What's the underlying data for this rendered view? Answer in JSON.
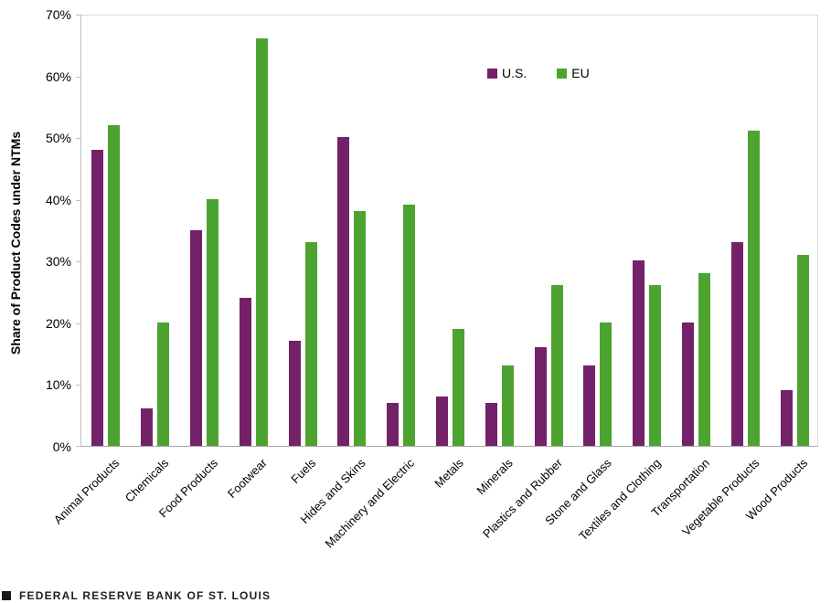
{
  "chart_data": {
    "type": "bar",
    "title": "",
    "xlabel": "",
    "ylabel": "Share of Product Codes under NTMs",
    "ylim": [
      0,
      70
    ],
    "ytick_step": 10,
    "ytick_labels": [
      "0%",
      "10%",
      "20%",
      "30%",
      "40%",
      "50%",
      "60%",
      "70%"
    ],
    "grid": false,
    "legend_position": "top-center-inside",
    "categories": [
      "Animal Products",
      "Chemicals",
      "Food Products",
      "Footwear",
      "Fuels",
      "Hides and Skins",
      "Machinery and Electric",
      "Metals",
      "Minerals",
      "Plastics and Rubber",
      "Stone and Glass",
      "Textiles and Clothing",
      "Transportation",
      "Vegetable Products",
      "Wood Products"
    ],
    "series": [
      {
        "name": "U.S.",
        "color": "#732169",
        "values": [
          48,
          6,
          35,
          24,
          17,
          50,
          7,
          8,
          7,
          16,
          13,
          30,
          20,
          33,
          9
        ]
      },
      {
        "name": "EU",
        "color": "#4da32f",
        "values": [
          52,
          20,
          40,
          66,
          33,
          38,
          39,
          19,
          13,
          26,
          20,
          26,
          28,
          51,
          31
        ]
      }
    ]
  },
  "footer": {
    "bullet": "■",
    "brand": "FEDERAL RESERVE BANK OF ST. LOUIS"
  }
}
